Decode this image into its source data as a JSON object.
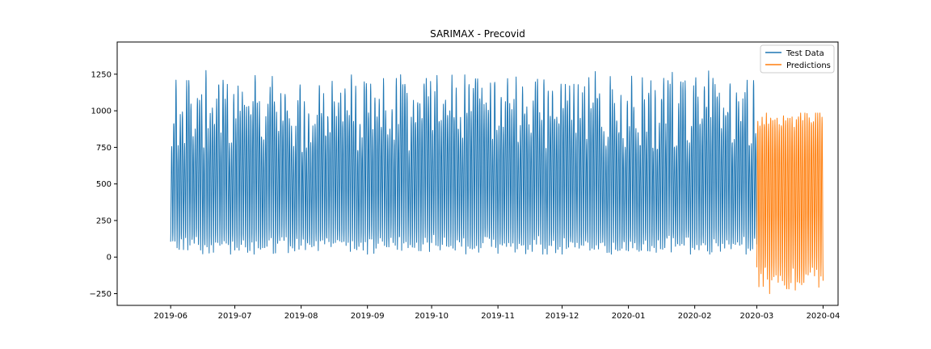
{
  "chart_data": {
    "type": "line",
    "title": "SARIMAX - Precovid",
    "xlabel": "",
    "ylabel": "",
    "xlim": [
      "2019-05-07",
      "2020-04-08"
    ],
    "ylim": [
      -330,
      1470
    ],
    "grid": false,
    "legend_position": "top-right",
    "x_ticks": [
      "2019-06",
      "2019-07",
      "2019-08",
      "2019-09",
      "2019-10",
      "2019-11",
      "2019-12",
      "2020-01",
      "2020-02",
      "2020-03",
      "2020-04"
    ],
    "y_ticks": [
      -250,
      0,
      250,
      500,
      750,
      1000,
      1250
    ],
    "series": [
      {
        "name": "Test Data",
        "color": "#1f77b4",
        "x_start": "2019-06-01",
        "x_end": "2020-02-29",
        "sampling": "hourly",
        "daily_pattern": "diurnal cycle: night trough, daytime peak",
        "typical_daily_min": 80,
        "typical_daily_max": 1000,
        "overall_min": 20,
        "overall_max": 1390
      },
      {
        "name": "Predictions",
        "color": "#ff7f0e",
        "x_start": "2020-03-01",
        "x_end": "2020-03-31",
        "sampling": "hourly",
        "daily_pattern": "regular diurnal cycle",
        "typical_daily_min": -150,
        "typical_daily_max": 950,
        "overall_min": -250,
        "overall_max": 985
      }
    ]
  }
}
